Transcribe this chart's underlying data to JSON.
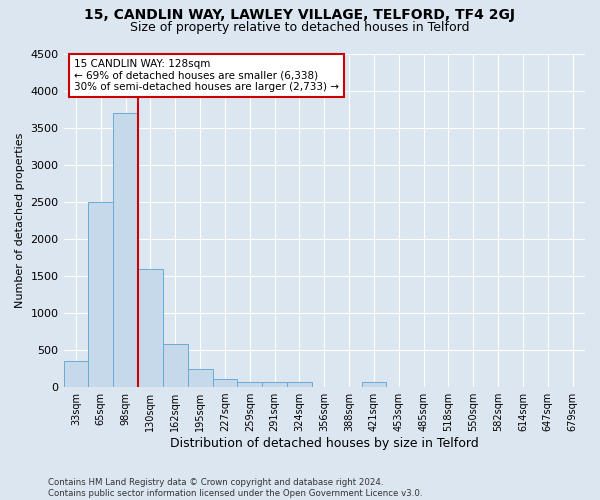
{
  "title1": "15, CANDLIN WAY, LAWLEY VILLAGE, TELFORD, TF4 2GJ",
  "title2": "Size of property relative to detached houses in Telford",
  "xlabel": "Distribution of detached houses by size in Telford",
  "ylabel": "Number of detached properties",
  "footnote": "Contains HM Land Registry data © Crown copyright and database right 2024.\nContains public sector information licensed under the Open Government Licence v3.0.",
  "categories": [
    "33sqm",
    "65sqm",
    "98sqm",
    "130sqm",
    "162sqm",
    "195sqm",
    "227sqm",
    "259sqm",
    "291sqm",
    "324sqm",
    "356sqm",
    "388sqm",
    "421sqm",
    "453sqm",
    "485sqm",
    "518sqm",
    "550sqm",
    "582sqm",
    "614sqm",
    "647sqm",
    "679sqm"
  ],
  "values": [
    350,
    2500,
    3700,
    1600,
    580,
    240,
    110,
    65,
    65,
    65,
    0,
    0,
    65,
    0,
    0,
    0,
    0,
    0,
    0,
    0,
    0
  ],
  "bar_color": "#c5d9ea",
  "bar_edge_color": "#6aaad4",
  "vline_x": 2.5,
  "vline_color": "#cc0000",
  "annotation_text": "15 CANDLIN WAY: 128sqm\n← 69% of detached houses are smaller (6,338)\n30% of semi-detached houses are larger (2,733) →",
  "annotation_box_color": "white",
  "annotation_box_edge": "#cc0000",
  "ylim": [
    0,
    4500
  ],
  "yticks": [
    0,
    500,
    1000,
    1500,
    2000,
    2500,
    3000,
    3500,
    4000,
    4500
  ],
  "bg_color": "#dce6f0",
  "plot_bg_color": "#dce6f0",
  "title1_fontsize": 10,
  "title2_fontsize": 9,
  "xlabel_fontsize": 9,
  "ylabel_fontsize": 8,
  "annot_fontsize": 7.5
}
